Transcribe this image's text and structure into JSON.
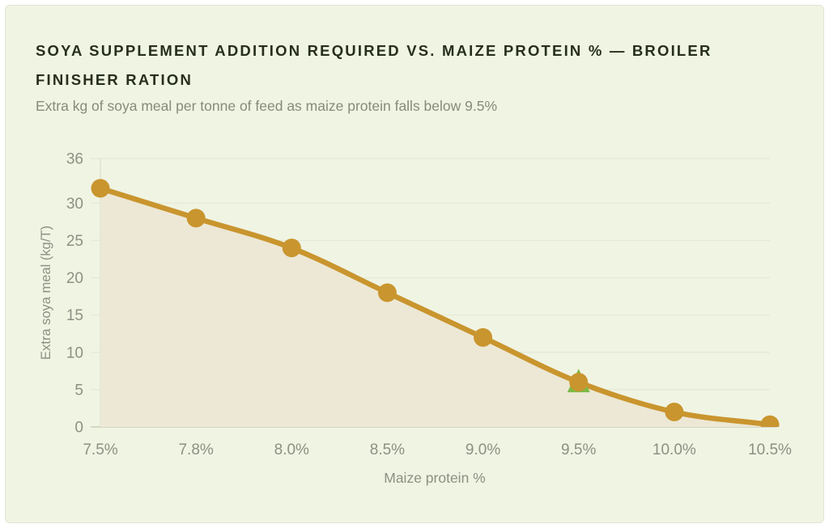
{
  "header": {
    "title": "SOYA SUPPLEMENT ADDITION REQUIRED VS. MAIZE PROTEIN % — BROILER FINISHER RATION",
    "subtitle": "Extra kg of soya meal per tonne of feed as maize protein falls below 9.5%"
  },
  "chart_data": {
    "type": "area",
    "title": "SOYA SUPPLEMENT ADDITION REQUIRED VS. MAIZE PROTEIN % — BROILER FINISHER RATION",
    "subtitle": "Extra kg of soya meal per tonne of feed as maize protein falls below 9.5%",
    "categories": [
      "7.5%",
      "7.8%",
      "8.0%",
      "8.5%",
      "9.0%",
      "9.5%",
      "10.0%",
      "10.5%"
    ],
    "values": [
      32,
      28,
      24,
      18,
      12,
      6,
      2,
      0.3
    ],
    "xlabel": "Maize protein %",
    "ylabel": "Extra soya meal (kg/T)",
    "yticks": [
      0,
      5,
      10,
      15,
      20,
      25,
      30,
      36
    ],
    "ylim": [
      0,
      36
    ],
    "grid": true,
    "legend": false,
    "smooth": true,
    "marker": "circle",
    "annotations": [
      {
        "shape": "triangle-up",
        "category": "9.5%",
        "value": 6,
        "color": "#7cba45"
      }
    ]
  },
  "style": {
    "panel_bg": "#f0f4e3",
    "panel_border": "#dfe6cd",
    "title_color": "#272f1c",
    "subtitle_color": "#868c79",
    "axis_text_color": "#8b9183",
    "grid_color": "#e4e8d5",
    "baseline_color": "#c7ccba",
    "axisline_color": "#dde1cf",
    "line_color": "#c9952e",
    "marker_color": "#c9952e",
    "area_fill": "#ece8d5"
  }
}
